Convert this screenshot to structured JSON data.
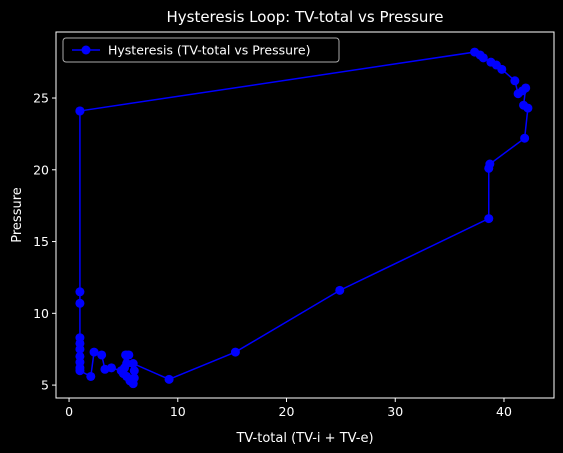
{
  "chart_data": {
    "type": "line",
    "title": "Hysteresis Loop: TV-total vs Pressure",
    "xlabel": "TV-total (TV-i + TV-e)",
    "ylabel": "Pressure",
    "xlim": [
      -1.2,
      44.6
    ],
    "ylim": [
      4.1,
      29.6
    ],
    "x_ticks": [
      0,
      10,
      20,
      30,
      40
    ],
    "y_ticks": [
      5,
      10,
      15,
      20,
      25
    ],
    "grid": false,
    "legend_position": "top-left",
    "series": [
      {
        "name": "Hysteresis (TV-total vs Pressure)",
        "color": "#0000ff",
        "marker": "circle",
        "points": [
          [
            1.0,
            24.1
          ],
          [
            1.0,
            11.5
          ],
          [
            1.0,
            10.7
          ],
          [
            1.0,
            8.3
          ],
          [
            1.0,
            7.9
          ],
          [
            1.0,
            7.5
          ],
          [
            1.0,
            7.0
          ],
          [
            1.0,
            6.6
          ],
          [
            1.0,
            6.2
          ],
          [
            1.0,
            6.0
          ],
          [
            2.0,
            5.6
          ],
          [
            2.3,
            7.3
          ],
          [
            3.0,
            7.1
          ],
          [
            3.3,
            6.1
          ],
          [
            3.9,
            6.2
          ],
          [
            4.8,
            6.0
          ],
          [
            5.2,
            7.1
          ],
          [
            5.5,
            7.1
          ],
          [
            5.3,
            6.5
          ],
          [
            5.1,
            6.2
          ],
          [
            5.0,
            5.8
          ],
          [
            5.3,
            5.6
          ],
          [
            5.6,
            5.3
          ],
          [
            5.9,
            5.1
          ],
          [
            6.0,
            5.5
          ],
          [
            6.0,
            6.0
          ],
          [
            5.9,
            6.5
          ],
          [
            9.2,
            5.4
          ],
          [
            15.3,
            7.3
          ],
          [
            24.9,
            11.6
          ],
          [
            38.6,
            16.6
          ],
          [
            38.6,
            20.1
          ],
          [
            38.7,
            20.4
          ],
          [
            41.9,
            22.2
          ],
          [
            42.2,
            24.3
          ],
          [
            41.8,
            24.5
          ],
          [
            42.0,
            25.7
          ],
          [
            41.7,
            25.5
          ],
          [
            41.3,
            25.3
          ],
          [
            41.0,
            26.2
          ],
          [
            39.8,
            27.0
          ],
          [
            39.3,
            27.3
          ],
          [
            38.8,
            27.5
          ],
          [
            38.1,
            27.8
          ],
          [
            37.8,
            28.0
          ],
          [
            37.3,
            28.2
          ],
          [
            1.0,
            24.1
          ]
        ]
      }
    ]
  }
}
